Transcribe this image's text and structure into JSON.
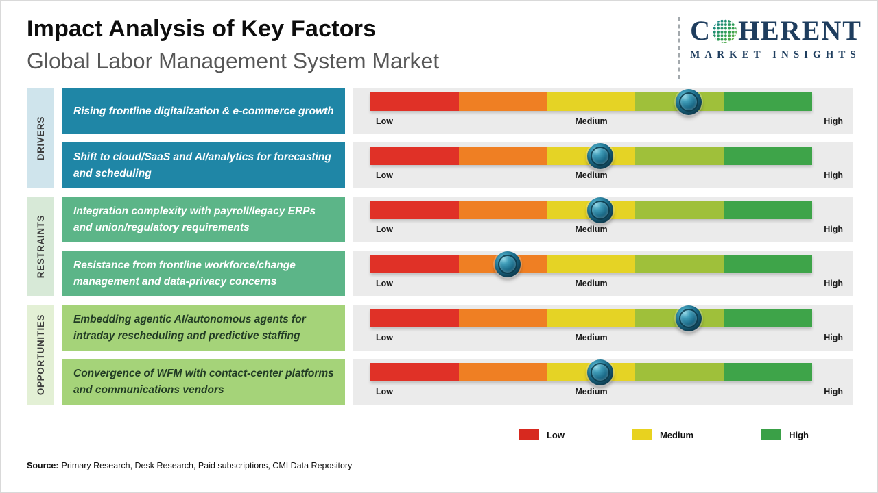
{
  "header": {
    "title": "Impact Analysis of Key Factors",
    "subtitle": "Global Labor Management System Market"
  },
  "logo": {
    "name_start": "C",
    "name_end": "HERENT",
    "tagline": "MARKET INSIGHTS"
  },
  "groups": [
    {
      "label": "DRIVERS",
      "color": "#cfe4ec"
    },
    {
      "label": "RESTRAINTS",
      "color": "#d7e9d7"
    },
    {
      "label": "OPPORTUNITIES",
      "color": "#e3f0d5"
    }
  ],
  "scale_labels": {
    "low": "Low",
    "medium": "Medium",
    "high": "High"
  },
  "bar_segment_colors": [
    "#e03127",
    "#ef7f23",
    "#e5d325",
    "#9fc03a",
    "#3ea449"
  ],
  "rows": [
    {
      "category": "Drivers",
      "factor": "Rising frontline digitalization & e-commerce growth",
      "box_color": "#1f86a6",
      "text_color": "#ffffff",
      "impact_percent": 72
    },
    {
      "category": "Drivers",
      "factor": "Shift to cloud/SaaS and AI/analytics for forecasting and scheduling",
      "box_color": "#1f86a6",
      "text_color": "#ffffff",
      "impact_percent": 52
    },
    {
      "category": "Restraints",
      "factor": "Integration complexity with payroll/legacy ERPs and union/regulatory requirements",
      "box_color": "#5cb588",
      "text_color": "#ffffff",
      "impact_percent": 52
    },
    {
      "category": "Restraints",
      "factor": "Resistance from frontline workforce/change management and data-privacy concerns",
      "box_color": "#5cb588",
      "text_color": "#ffffff",
      "impact_percent": 31
    },
    {
      "category": "Opportunities",
      "factor": "Embedding agentic AI/autonomous agents for intraday rescheduling and predictive staffing",
      "box_color": "#a5d379",
      "text_color": "#223c25",
      "impact_percent": 72
    },
    {
      "category": "Opportunities",
      "factor": "Convergence of WFM with contact-center platforms and communications vendors",
      "box_color": "#a5d379",
      "text_color": "#223c25",
      "impact_percent": 52
    }
  ],
  "legend": [
    {
      "label": "Low",
      "color": "#d7291f"
    },
    {
      "label": "Medium",
      "color": "#e8d21f"
    },
    {
      "label": "High",
      "color": "#3aa047"
    }
  ],
  "source": {
    "label": "Source:",
    "text": "Primary Research, Desk Research, Paid subscriptions, CMI Data Repository"
  },
  "chart_data": {
    "type": "table",
    "title": "Impact Analysis of Key Factors",
    "subtitle": "Global Labor Management System Market",
    "scale": {
      "min_label": "Low",
      "mid_label": "Medium",
      "max_label": "High",
      "range_percent": [
        0,
        100
      ]
    },
    "rows": [
      {
        "category": "Drivers",
        "factor": "Rising frontline digitalization & e-commerce growth",
        "impact_percent": 72,
        "impact_level": "Medium-High"
      },
      {
        "category": "Drivers",
        "factor": "Shift to cloud/SaaS and AI/analytics for forecasting and scheduling",
        "impact_percent": 52,
        "impact_level": "Medium"
      },
      {
        "category": "Restraints",
        "factor": "Integration complexity with payroll/legacy ERPs and union/regulatory requirements",
        "impact_percent": 52,
        "impact_level": "Medium"
      },
      {
        "category": "Restraints",
        "factor": "Resistance from frontline workforce/change management and data-privacy concerns",
        "impact_percent": 31,
        "impact_level": "Low-Medium"
      },
      {
        "category": "Opportunities",
        "factor": "Embedding agentic AI/autonomous agents for intraday rescheduling and predictive staffing",
        "impact_percent": 72,
        "impact_level": "Medium-High"
      },
      {
        "category": "Opportunities",
        "factor": "Convergence of WFM with contact-center platforms and communications vendors",
        "impact_percent": 52,
        "impact_level": "Medium"
      }
    ],
    "legend": [
      "Low",
      "Medium",
      "High"
    ]
  }
}
